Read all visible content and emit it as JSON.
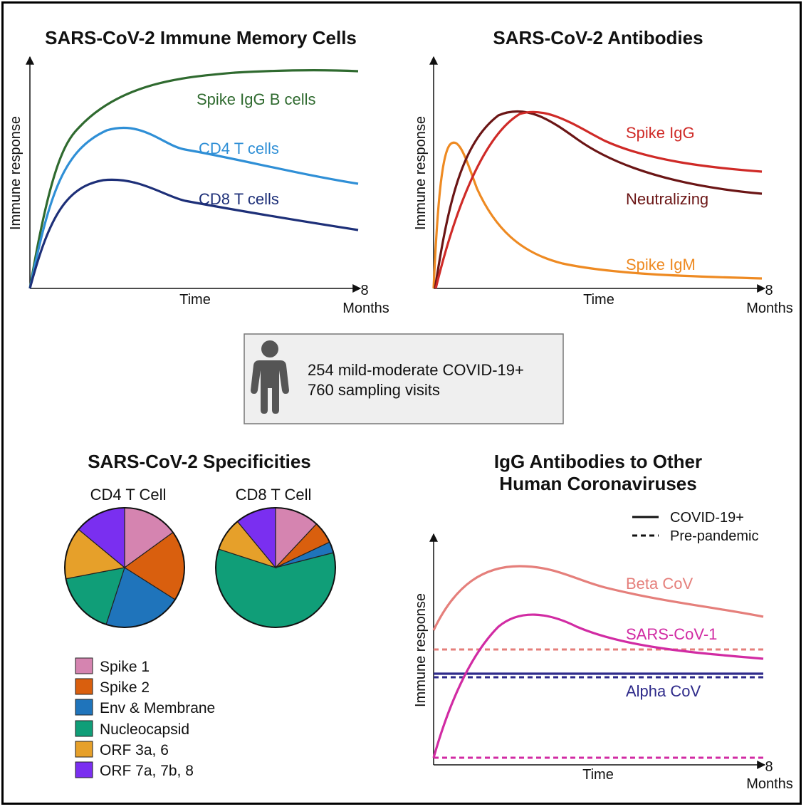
{
  "panels": {
    "memory": {
      "title": "SARS-CoV-2 Immune Memory Cells",
      "ylabel": "Immune response",
      "xlabel": "Time",
      "end_tick": "8",
      "end_unit": "Months",
      "curves": [
        {
          "label": "Spike IgG B cells",
          "color": "#2f6a2f"
        },
        {
          "label": "CD4 T cells",
          "color": "#2f8fd6"
        },
        {
          "label": "CD8 T cells",
          "color": "#1d2f78"
        }
      ]
    },
    "antibodies": {
      "title": "SARS-CoV-2 Antibodies",
      "ylabel": "Immune response",
      "xlabel": "Time",
      "end_tick": "8",
      "end_unit": "Months",
      "curves": [
        {
          "label": "Spike IgG",
          "color": "#cf2a27"
        },
        {
          "label": "Neutralizing",
          "color": "#6b1515"
        },
        {
          "label": "Spike IgM",
          "color": "#ee8a22"
        }
      ]
    },
    "cohort": {
      "line1": "254 mild-moderate COVID-19+",
      "line2": "760 sampling visits",
      "icon": "person-icon"
    },
    "specificities": {
      "title": "SARS-CoV-2 Specificities",
      "pies": [
        {
          "label": "CD4 T Cell",
          "slices": [
            {
              "name": "Spike 1",
              "value": 15
            },
            {
              "name": "Spike 2",
              "value": 19
            },
            {
              "name": "Env & Membrane",
              "value": 21
            },
            {
              "name": "Nucleocapsid",
              "value": 17
            },
            {
              "name": "ORF 3a, 6",
              "value": 14
            },
            {
              "name": "ORF 7a, 7b, 8",
              "value": 14
            }
          ]
        },
        {
          "label": "CD8 T Cell",
          "slices": [
            {
              "name": "Spike 1",
              "value": 12
            },
            {
              "name": "Spike 2",
              "value": 6
            },
            {
              "name": "Env & Membrane",
              "value": 3
            },
            {
              "name": "Nucleocapsid",
              "value": 59
            },
            {
              "name": "ORF 3a, 6",
              "value": 9
            },
            {
              "name": "ORF 7a, 7b, 8",
              "value": 11
            }
          ]
        }
      ],
      "legend": [
        {
          "label": "Spike 1",
          "color": "#d584b0"
        },
        {
          "label": "Spike 2",
          "color": "#d95f0e"
        },
        {
          "label": "Env & Membrane",
          "color": "#1f74bb"
        },
        {
          "label": "Nucleocapsid",
          "color": "#109e78"
        },
        {
          "label": "ORF 3a, 6",
          "color": "#e6a02a"
        },
        {
          "label": "ORF 7a, 7b, 8",
          "color": "#7a2ff0"
        }
      ]
    },
    "other": {
      "title_line1": "IgG Antibodies to Other",
      "title_line2": "Human Coronaviruses",
      "legend_solid": "COVID-19+",
      "legend_dashed": "Pre-pandemic",
      "ylabel": "Immune response",
      "xlabel": "Time",
      "end_tick": "8",
      "end_unit": "Months",
      "curves": [
        {
          "label": "Beta CoV",
          "color": "#e57f7b"
        },
        {
          "label": "SARS-CoV-1",
          "color": "#d12ba3"
        },
        {
          "label": "Alpha CoV",
          "color": "#2e2a8a"
        }
      ]
    }
  }
}
